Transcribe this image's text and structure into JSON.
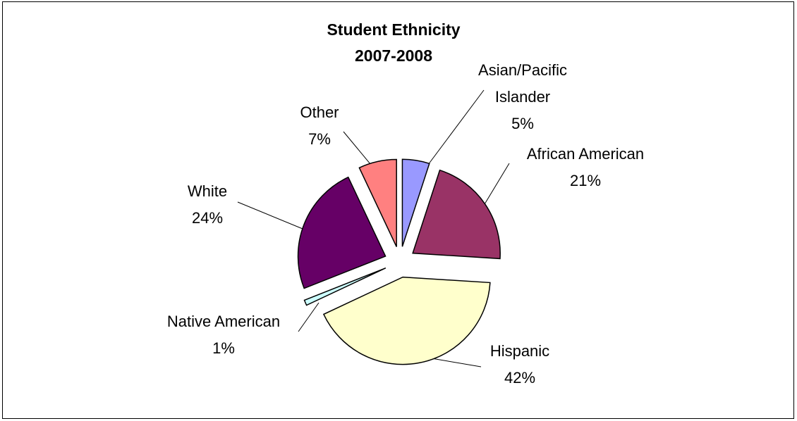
{
  "chart_data": {
    "type": "pie",
    "title": [
      "Student Ethnicity",
      "2007-2008"
    ],
    "exploded": true,
    "legend": "none",
    "slices": [
      {
        "label": [
          "Asian/Pacific",
          "Islander"
        ],
        "value": 5,
        "percent_label": "5%",
        "color": "#9999FF"
      },
      {
        "label": [
          "African American"
        ],
        "value": 21,
        "percent_label": "21%",
        "color": "#993366"
      },
      {
        "label": [
          "Hispanic"
        ],
        "value": 42,
        "percent_label": "42%",
        "color": "#FFFFCC"
      },
      {
        "label": [
          "Native American"
        ],
        "value": 1,
        "percent_label": "1%",
        "color": "#CCFFFF"
      },
      {
        "label": [
          "White"
        ],
        "value": 24,
        "percent_label": "24%",
        "color": "#660066"
      },
      {
        "label": [
          "Other"
        ],
        "value": 7,
        "percent_label": "7%",
        "color": "#FF8080"
      }
    ]
  }
}
